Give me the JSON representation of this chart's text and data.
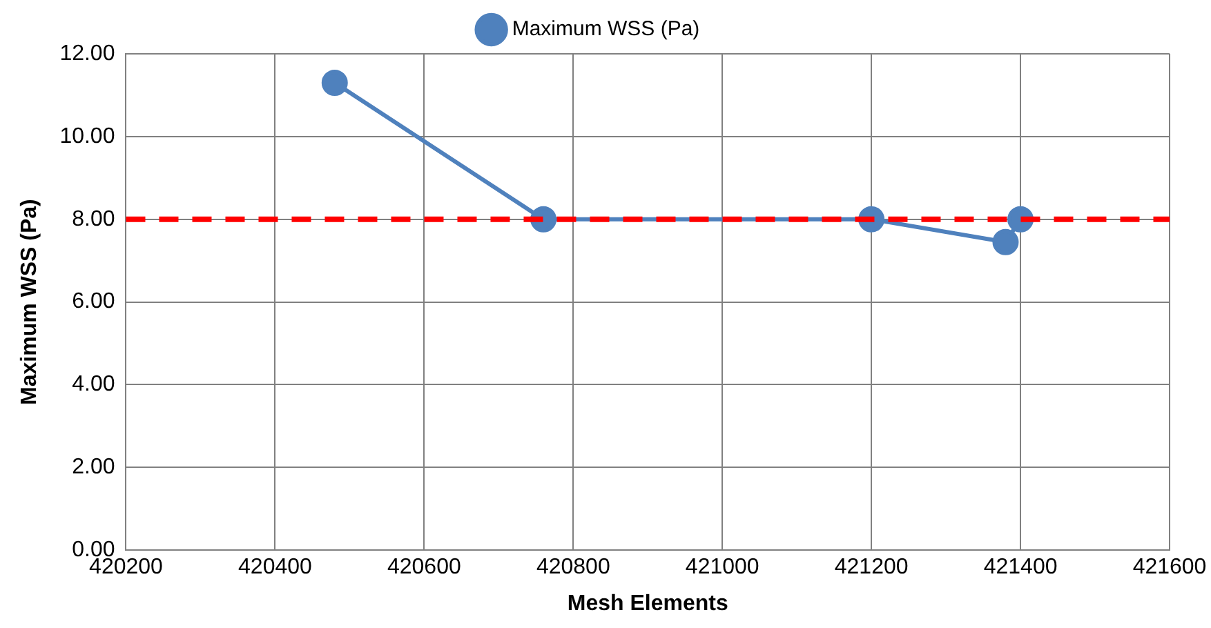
{
  "chart_data": {
    "type": "line",
    "xlabel": "Mesh Elements",
    "ylabel": "Maximum WSS (Pa)",
    "x": [
      420480,
      420760,
      421200,
      421380,
      421400
    ],
    "series": [
      {
        "name": "Maximum WSS (Pa)",
        "color": "#4f81bd",
        "values": [
          11.3,
          8.0,
          8.0,
          7.45,
          8.0
        ]
      }
    ],
    "xlim": [
      420200,
      421600
    ],
    "xticks": [
      420200,
      420400,
      420600,
      420800,
      421000,
      421200,
      421400,
      421600
    ],
    "ylim": [
      0,
      12
    ],
    "yticks": [
      {
        "value": 0,
        "label": "0.00"
      },
      {
        "value": 2,
        "label": "2.00"
      },
      {
        "value": 4,
        "label": "4.00"
      },
      {
        "value": 6,
        "label": "6.00"
      },
      {
        "value": 8,
        "label": "8.00"
      },
      {
        "value": 10,
        "label": "10.00"
      },
      {
        "value": 12,
        "label": "12.00"
      }
    ],
    "ref_lines": [
      {
        "axis": "y",
        "value": 8,
        "color": "#ff0000",
        "line_style": "dashed"
      }
    ],
    "grid": true,
    "legend": "top",
    "marker": "circle",
    "line_style": "solid"
  }
}
